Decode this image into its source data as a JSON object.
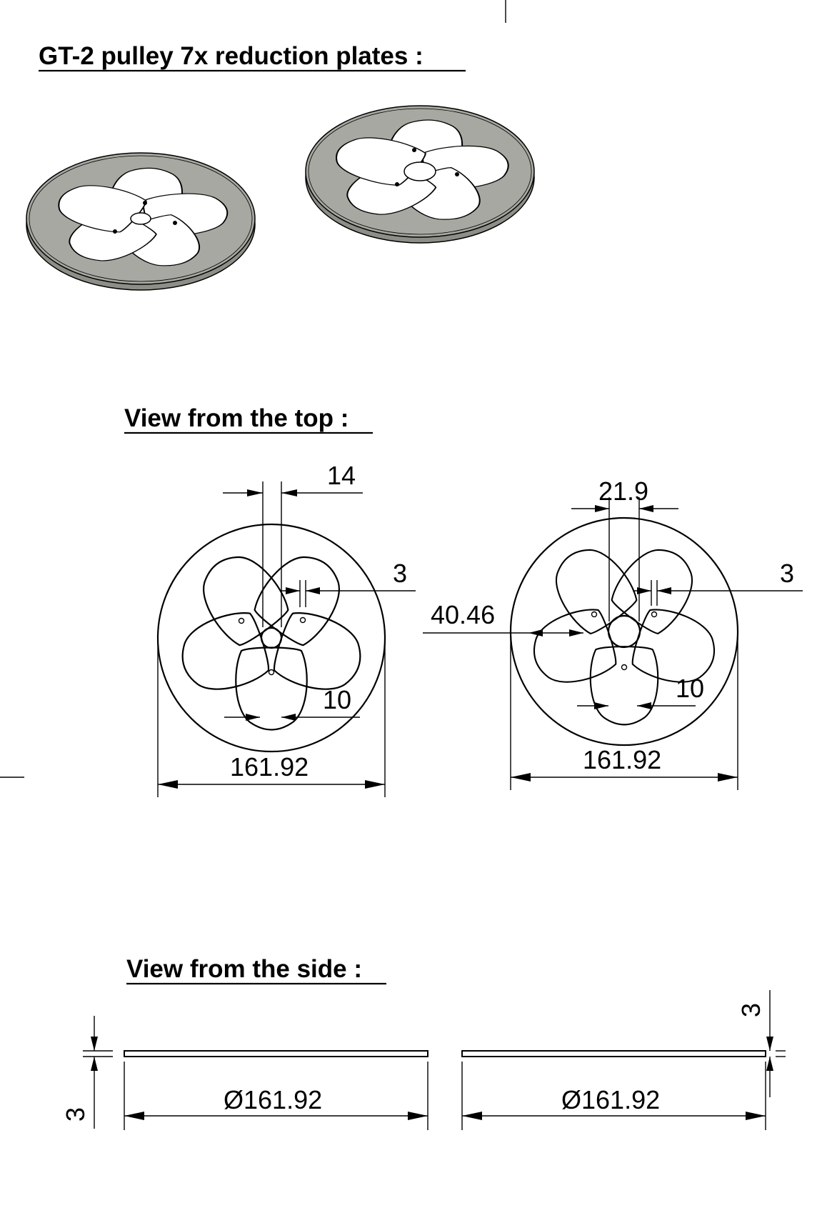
{
  "headings": {
    "title": "GT-2 pulley 7x reduction plates :",
    "top_view": "View from the top :",
    "side_view": "View from the side :"
  },
  "top_left_dims": {
    "spoke_gap": "14",
    "thickness": "3",
    "inner": "10",
    "diameter": "161.92"
  },
  "top_right_dims": {
    "spoke_gap": "21.9",
    "thickness": "3",
    "rim_width": "40.46",
    "inner": "10",
    "diameter": "161.92"
  },
  "side_dims": {
    "left_diameter": "Ø161.92",
    "right_diameter": "Ø161.92",
    "left_thickness": "3",
    "right_thickness": "3"
  },
  "colors": {
    "plate_fill": "#a8a8a2",
    "plate_edge": "#7a7a74",
    "line": "#000000"
  }
}
